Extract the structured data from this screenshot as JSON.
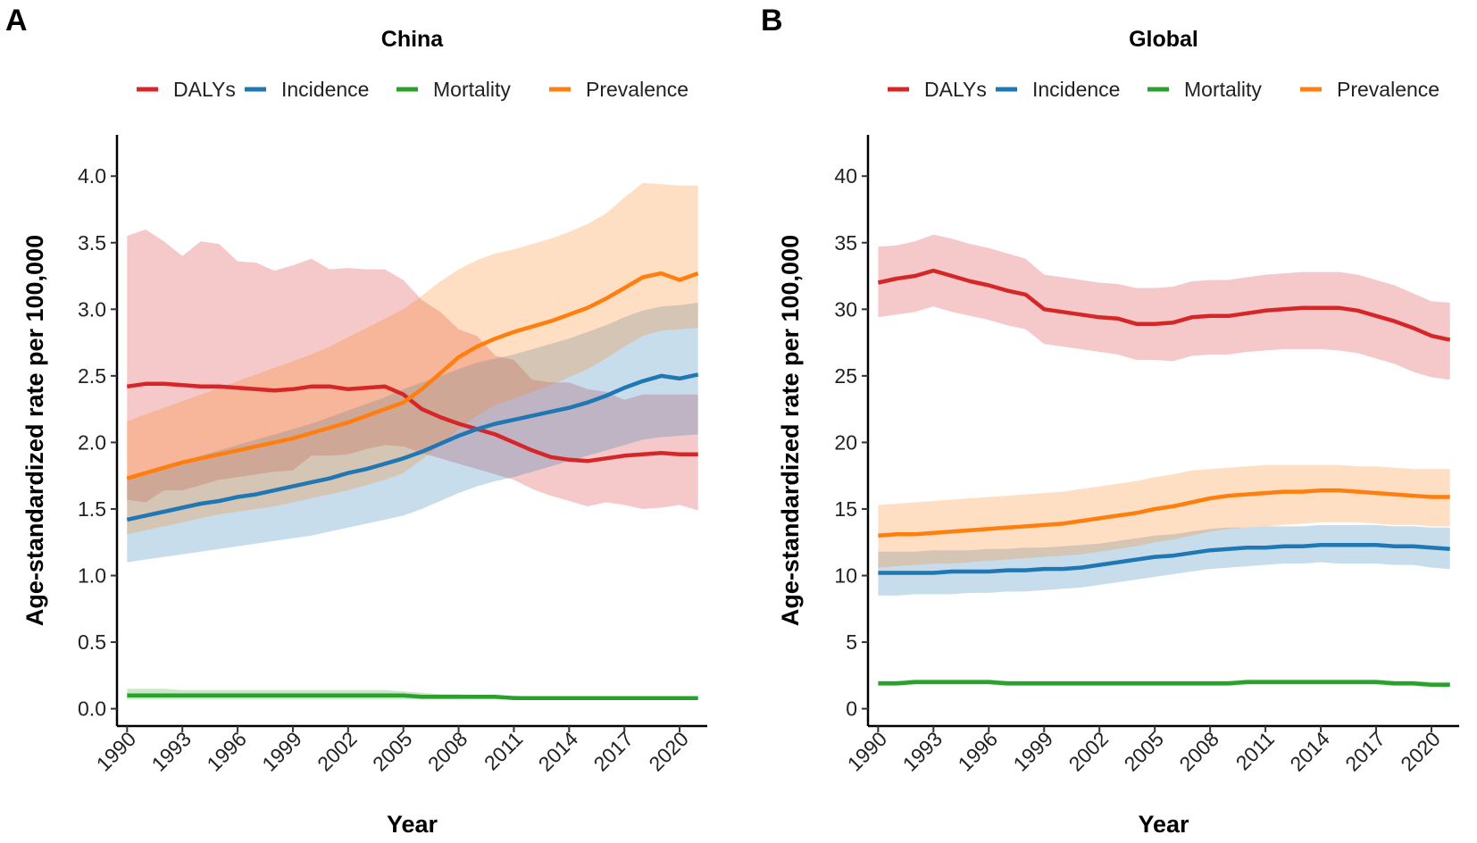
{
  "chart_data": [
    {
      "type": "line",
      "panel_label": "A",
      "title": "China",
      "x_label": "Year",
      "y_label": "Age-standardized rate per 100,000",
      "legend": "top",
      "band_opacity": 0.25,
      "x": [
        1990,
        1991,
        1992,
        1993,
        1994,
        1995,
        1996,
        1997,
        1998,
        1999,
        2000,
        2001,
        2002,
        2003,
        2004,
        2005,
        2006,
        2007,
        2008,
        2009,
        2010,
        2011,
        2012,
        2013,
        2014,
        2015,
        2016,
        2017,
        2018,
        2019,
        2020,
        2021
      ],
      "xlim": [
        1989.45,
        2021.5
      ],
      "xticks": [
        1990,
        1993,
        1996,
        1999,
        2002,
        2005,
        2008,
        2011,
        2014,
        2017,
        2020
      ],
      "ylim": [
        -0.13,
        4.31
      ],
      "yticks": [
        {
          "value": 0,
          "label": "0.0"
        },
        0.5,
        {
          "value": 1,
          "label": "1.0"
        },
        1.5,
        {
          "value": 2,
          "label": "2.0"
        },
        2.5,
        {
          "value": 3,
          "label": "3.0"
        },
        3.5,
        {
          "value": 4,
          "label": "4.0"
        }
      ],
      "series": [
        {
          "name": "DALYs",
          "color": "#d62728",
          "values": [
            2.42,
            2.44,
            2.44,
            2.43,
            2.42,
            2.42,
            2.41,
            2.4,
            2.39,
            2.4,
            2.42,
            2.42,
            2.4,
            2.41,
            2.42,
            2.36,
            2.25,
            2.19,
            2.14,
            2.1,
            2.06,
            2.0,
            1.94,
            1.89,
            1.87,
            1.86,
            1.88,
            1.9,
            1.91,
            1.92,
            1.91,
            1.91
          ],
          "upper": [
            3.55,
            3.6,
            3.51,
            3.4,
            3.51,
            3.49,
            3.36,
            3.35,
            3.29,
            3.33,
            3.38,
            3.3,
            3.31,
            3.3,
            3.3,
            3.22,
            3.07,
            2.98,
            2.85,
            2.8,
            2.65,
            2.62,
            2.47,
            2.45,
            2.45,
            2.4,
            2.38,
            2.32,
            2.36,
            2.36,
            2.36,
            2.36
          ],
          "lower": [
            1.57,
            1.55,
            1.64,
            1.64,
            1.68,
            1.72,
            1.74,
            1.76,
            1.78,
            1.79,
            1.9,
            1.9,
            1.91,
            1.95,
            1.98,
            1.97,
            1.92,
            1.88,
            1.84,
            1.8,
            1.76,
            1.72,
            1.65,
            1.6,
            1.56,
            1.52,
            1.55,
            1.53,
            1.5,
            1.51,
            1.53,
            1.49
          ]
        },
        {
          "name": "Incidence",
          "color": "#1f77b4",
          "values": [
            1.42,
            1.45,
            1.48,
            1.51,
            1.54,
            1.56,
            1.59,
            1.61,
            1.64,
            1.67,
            1.7,
            1.73,
            1.77,
            1.8,
            1.84,
            1.88,
            1.93,
            1.99,
            2.05,
            2.1,
            2.14,
            2.17,
            2.2,
            2.23,
            2.26,
            2.3,
            2.35,
            2.41,
            2.46,
            2.5,
            2.48,
            2.51
          ],
          "upper": [
            1.74,
            1.78,
            1.82,
            1.86,
            1.9,
            1.94,
            1.98,
            2.02,
            2.06,
            2.1,
            2.14,
            2.19,
            2.24,
            2.29,
            2.34,
            2.4,
            2.45,
            2.5,
            2.55,
            2.6,
            2.63,
            2.66,
            2.7,
            2.74,
            2.78,
            2.83,
            2.88,
            2.94,
            2.99,
            3.02,
            3.03,
            3.05
          ],
          "lower": [
            1.1,
            1.12,
            1.14,
            1.16,
            1.18,
            1.2,
            1.22,
            1.24,
            1.26,
            1.28,
            1.3,
            1.33,
            1.36,
            1.39,
            1.42,
            1.45,
            1.5,
            1.56,
            1.62,
            1.67,
            1.71,
            1.74,
            1.78,
            1.82,
            1.86,
            1.9,
            1.94,
            1.98,
            2.02,
            2.04,
            2.05,
            2.06
          ]
        },
        {
          "name": "Mortality",
          "color": "#2ca02c",
          "values": [
            0.1,
            0.1,
            0.1,
            0.1,
            0.1,
            0.1,
            0.1,
            0.1,
            0.1,
            0.1,
            0.1,
            0.1,
            0.1,
            0.1,
            0.1,
            0.1,
            0.09,
            0.09,
            0.09,
            0.09,
            0.09,
            0.08,
            0.08,
            0.08,
            0.08,
            0.08,
            0.08,
            0.08,
            0.08,
            0.08,
            0.08,
            0.08
          ],
          "upper": [
            0.15,
            0.15,
            0.15,
            0.14,
            0.14,
            0.14,
            0.14,
            0.14,
            0.14,
            0.14,
            0.14,
            0.14,
            0.14,
            0.14,
            0.14,
            0.13,
            0.12,
            0.11,
            0.11,
            0.1,
            0.1,
            0.1,
            0.09,
            0.09,
            0.09,
            0.09,
            0.09,
            0.09,
            0.09,
            0.09,
            0.09,
            0.09
          ],
          "lower": [
            0.07,
            0.07,
            0.07,
            0.07,
            0.07,
            0.07,
            0.07,
            0.07,
            0.07,
            0.07,
            0.07,
            0.07,
            0.07,
            0.07,
            0.07,
            0.07,
            0.07,
            0.07,
            0.07,
            0.07,
            0.07,
            0.07,
            0.07,
            0.07,
            0.07,
            0.07,
            0.07,
            0.07,
            0.07,
            0.07,
            0.07,
            0.07
          ]
        },
        {
          "name": "Prevalence",
          "color": "#ff7f0e",
          "values": [
            1.73,
            1.77,
            1.81,
            1.85,
            1.88,
            1.91,
            1.94,
            1.97,
            2.0,
            2.03,
            2.07,
            2.11,
            2.15,
            2.2,
            2.25,
            2.3,
            2.4,
            2.52,
            2.64,
            2.72,
            2.78,
            2.83,
            2.87,
            2.91,
            2.96,
            3.01,
            3.08,
            3.16,
            3.24,
            3.27,
            3.22,
            3.27
          ],
          "upper": [
            2.16,
            2.21,
            2.26,
            2.31,
            2.36,
            2.41,
            2.46,
            2.51,
            2.56,
            2.61,
            2.66,
            2.72,
            2.79,
            2.86,
            2.93,
            3.0,
            3.1,
            3.21,
            3.3,
            3.37,
            3.42,
            3.45,
            3.49,
            3.53,
            3.58,
            3.64,
            3.72,
            3.84,
            3.95,
            3.94,
            3.93,
            3.93
          ],
          "lower": [
            1.31,
            1.34,
            1.37,
            1.4,
            1.43,
            1.46,
            1.48,
            1.5,
            1.52,
            1.55,
            1.58,
            1.61,
            1.64,
            1.68,
            1.72,
            1.77,
            1.87,
            1.98,
            2.1,
            2.2,
            2.28,
            2.33,
            2.38,
            2.43,
            2.49,
            2.55,
            2.63,
            2.72,
            2.8,
            2.84,
            2.85,
            2.86
          ]
        }
      ]
    },
    {
      "type": "line",
      "panel_label": "B",
      "title": "Global",
      "x_label": "Year",
      "y_label": "Age-standardized rate per 100,000",
      "legend": "top",
      "band_opacity": 0.25,
      "x": [
        1990,
        1991,
        1992,
        1993,
        1994,
        1995,
        1996,
        1997,
        1998,
        1999,
        2000,
        2001,
        2002,
        2003,
        2004,
        2005,
        2006,
        2007,
        2008,
        2009,
        2010,
        2011,
        2012,
        2013,
        2014,
        2015,
        2016,
        2017,
        2018,
        2019,
        2020,
        2021
      ],
      "xlim": [
        1989.45,
        2021.5
      ],
      "xticks": [
        1990,
        1993,
        1996,
        1999,
        2002,
        2005,
        2008,
        2011,
        2014,
        2017,
        2020
      ],
      "ylim": [
        -1.3,
        43.1
      ],
      "yticks": [
        0,
        5,
        10,
        15,
        20,
        25,
        30,
        35,
        40
      ],
      "series": [
        {
          "name": "DALYs",
          "color": "#d62728",
          "values": [
            32.0,
            32.3,
            32.5,
            32.9,
            32.5,
            32.1,
            31.8,
            31.4,
            31.1,
            30.0,
            29.8,
            29.6,
            29.4,
            29.3,
            28.9,
            28.9,
            29.0,
            29.4,
            29.5,
            29.5,
            29.7,
            29.9,
            30.0,
            30.1,
            30.1,
            30.1,
            29.9,
            29.5,
            29.1,
            28.6,
            28.0,
            27.7
          ],
          "upper": [
            34.7,
            34.8,
            35.1,
            35.6,
            35.3,
            34.9,
            34.6,
            34.2,
            33.8,
            32.6,
            32.4,
            32.2,
            32.0,
            31.9,
            31.6,
            31.6,
            31.7,
            32.1,
            32.2,
            32.2,
            32.4,
            32.6,
            32.7,
            32.8,
            32.8,
            32.8,
            32.6,
            32.2,
            31.8,
            31.2,
            30.6,
            30.5
          ],
          "lower": [
            29.4,
            29.6,
            29.8,
            30.2,
            29.8,
            29.5,
            29.2,
            28.8,
            28.5,
            27.4,
            27.2,
            27.0,
            26.8,
            26.6,
            26.2,
            26.2,
            26.1,
            26.5,
            26.6,
            26.6,
            26.8,
            26.9,
            27.0,
            27.0,
            27.0,
            26.9,
            26.7,
            26.3,
            25.9,
            25.3,
            24.9,
            24.7
          ]
        },
        {
          "name": "Incidence",
          "color": "#1f77b4",
          "values": [
            10.2,
            10.2,
            10.2,
            10.2,
            10.3,
            10.3,
            10.3,
            10.4,
            10.4,
            10.5,
            10.5,
            10.6,
            10.8,
            11.0,
            11.2,
            11.4,
            11.5,
            11.7,
            11.9,
            12.0,
            12.1,
            12.1,
            12.2,
            12.2,
            12.3,
            12.3,
            12.3,
            12.3,
            12.2,
            12.2,
            12.1,
            12.0
          ],
          "upper": [
            11.8,
            11.8,
            11.8,
            11.9,
            11.9,
            11.9,
            12.0,
            12.0,
            12.1,
            12.1,
            12.2,
            12.3,
            12.4,
            12.6,
            12.8,
            13.0,
            13.1,
            13.3,
            13.5,
            13.6,
            13.6,
            13.7,
            13.7,
            13.7,
            13.8,
            13.8,
            13.8,
            13.8,
            13.7,
            13.7,
            13.6,
            13.6
          ],
          "lower": [
            8.5,
            8.5,
            8.6,
            8.6,
            8.6,
            8.7,
            8.7,
            8.8,
            8.8,
            8.9,
            9.0,
            9.1,
            9.3,
            9.5,
            9.7,
            9.9,
            10.1,
            10.3,
            10.5,
            10.6,
            10.7,
            10.8,
            10.9,
            10.9,
            11.0,
            10.9,
            10.9,
            10.9,
            10.8,
            10.8,
            10.6,
            10.5
          ]
        },
        {
          "name": "Mortality",
          "color": "#2ca02c",
          "values": [
            1.9,
            1.9,
            2.0,
            2.0,
            2.0,
            2.0,
            2.0,
            1.9,
            1.9,
            1.9,
            1.9,
            1.9,
            1.9,
            1.9,
            1.9,
            1.9,
            1.9,
            1.9,
            1.9,
            1.9,
            2.0,
            2.0,
            2.0,
            2.0,
            2.0,
            2.0,
            2.0,
            2.0,
            1.9,
            1.9,
            1.8,
            1.8
          ],
          "upper": [
            2.1,
            2.1,
            2.2,
            2.2,
            2.2,
            2.2,
            2.2,
            2.1,
            2.1,
            2.1,
            2.1,
            2.1,
            2.1,
            2.1,
            2.1,
            2.1,
            2.1,
            2.1,
            2.1,
            2.1,
            2.2,
            2.2,
            2.2,
            2.2,
            2.2,
            2.2,
            2.2,
            2.2,
            2.1,
            2.1,
            2.0,
            2.0
          ],
          "lower": [
            1.7,
            1.7,
            1.8,
            1.8,
            1.8,
            1.8,
            1.8,
            1.7,
            1.7,
            1.7,
            1.7,
            1.7,
            1.7,
            1.7,
            1.7,
            1.7,
            1.7,
            1.7,
            1.7,
            1.7,
            1.8,
            1.8,
            1.8,
            1.8,
            1.8,
            1.8,
            1.8,
            1.8,
            1.7,
            1.7,
            1.6,
            1.6
          ]
        },
        {
          "name": "Prevalence",
          "color": "#ff7f0e",
          "values": [
            13.0,
            13.1,
            13.1,
            13.2,
            13.3,
            13.4,
            13.5,
            13.6,
            13.7,
            13.8,
            13.9,
            14.1,
            14.3,
            14.5,
            14.7,
            15.0,
            15.2,
            15.5,
            15.8,
            16.0,
            16.1,
            16.2,
            16.3,
            16.3,
            16.4,
            16.4,
            16.3,
            16.2,
            16.1,
            16.0,
            15.9,
            15.9
          ],
          "upper": [
            15.3,
            15.4,
            15.5,
            15.6,
            15.7,
            15.8,
            15.9,
            16.0,
            16.1,
            16.2,
            16.3,
            16.5,
            16.7,
            16.9,
            17.1,
            17.4,
            17.6,
            17.9,
            18.0,
            18.1,
            18.2,
            18.3,
            18.3,
            18.3,
            18.3,
            18.3,
            18.2,
            18.2,
            18.1,
            18.0,
            18.0,
            18.0
          ],
          "lower": [
            10.6,
            10.7,
            10.8,
            10.9,
            10.9,
            11.0,
            11.1,
            11.2,
            11.3,
            11.4,
            11.5,
            11.6,
            11.8,
            12.0,
            12.2,
            12.5,
            12.7,
            13.0,
            13.3,
            13.5,
            13.6,
            13.7,
            13.8,
            13.9,
            14.0,
            14.0,
            14.0,
            13.9,
            13.8,
            13.8,
            13.7,
            13.7
          ]
        }
      ]
    }
  ]
}
